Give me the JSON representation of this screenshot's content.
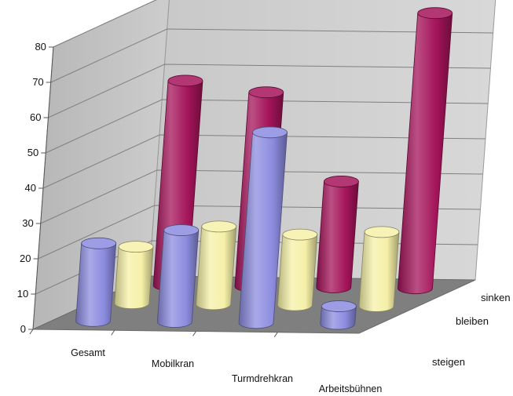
{
  "chart_data": {
    "type": "bar",
    "subtype": "3d-cylinder",
    "title": "",
    "xlabel": "",
    "ylabel": "",
    "ylim": [
      0,
      80
    ],
    "yticks": [
      0,
      10,
      20,
      30,
      40,
      50,
      60,
      70,
      80
    ],
    "grid": true,
    "categories": [
      "Gesamt",
      "Mobilkran",
      "Turmdrehkran",
      "Arbeitsbühnen"
    ],
    "series": [
      {
        "name": "steigen",
        "color": "#8c8ce0",
        "values": [
          22,
          26,
          54,
          5
        ]
      },
      {
        "name": "bleiben",
        "color": "#f5f0a8",
        "values": [
          16,
          22,
          20,
          21
        ]
      },
      {
        "name": "sinken",
        "color": "#a4145a",
        "values": [
          58,
          55,
          30,
          78
        ]
      }
    ]
  }
}
